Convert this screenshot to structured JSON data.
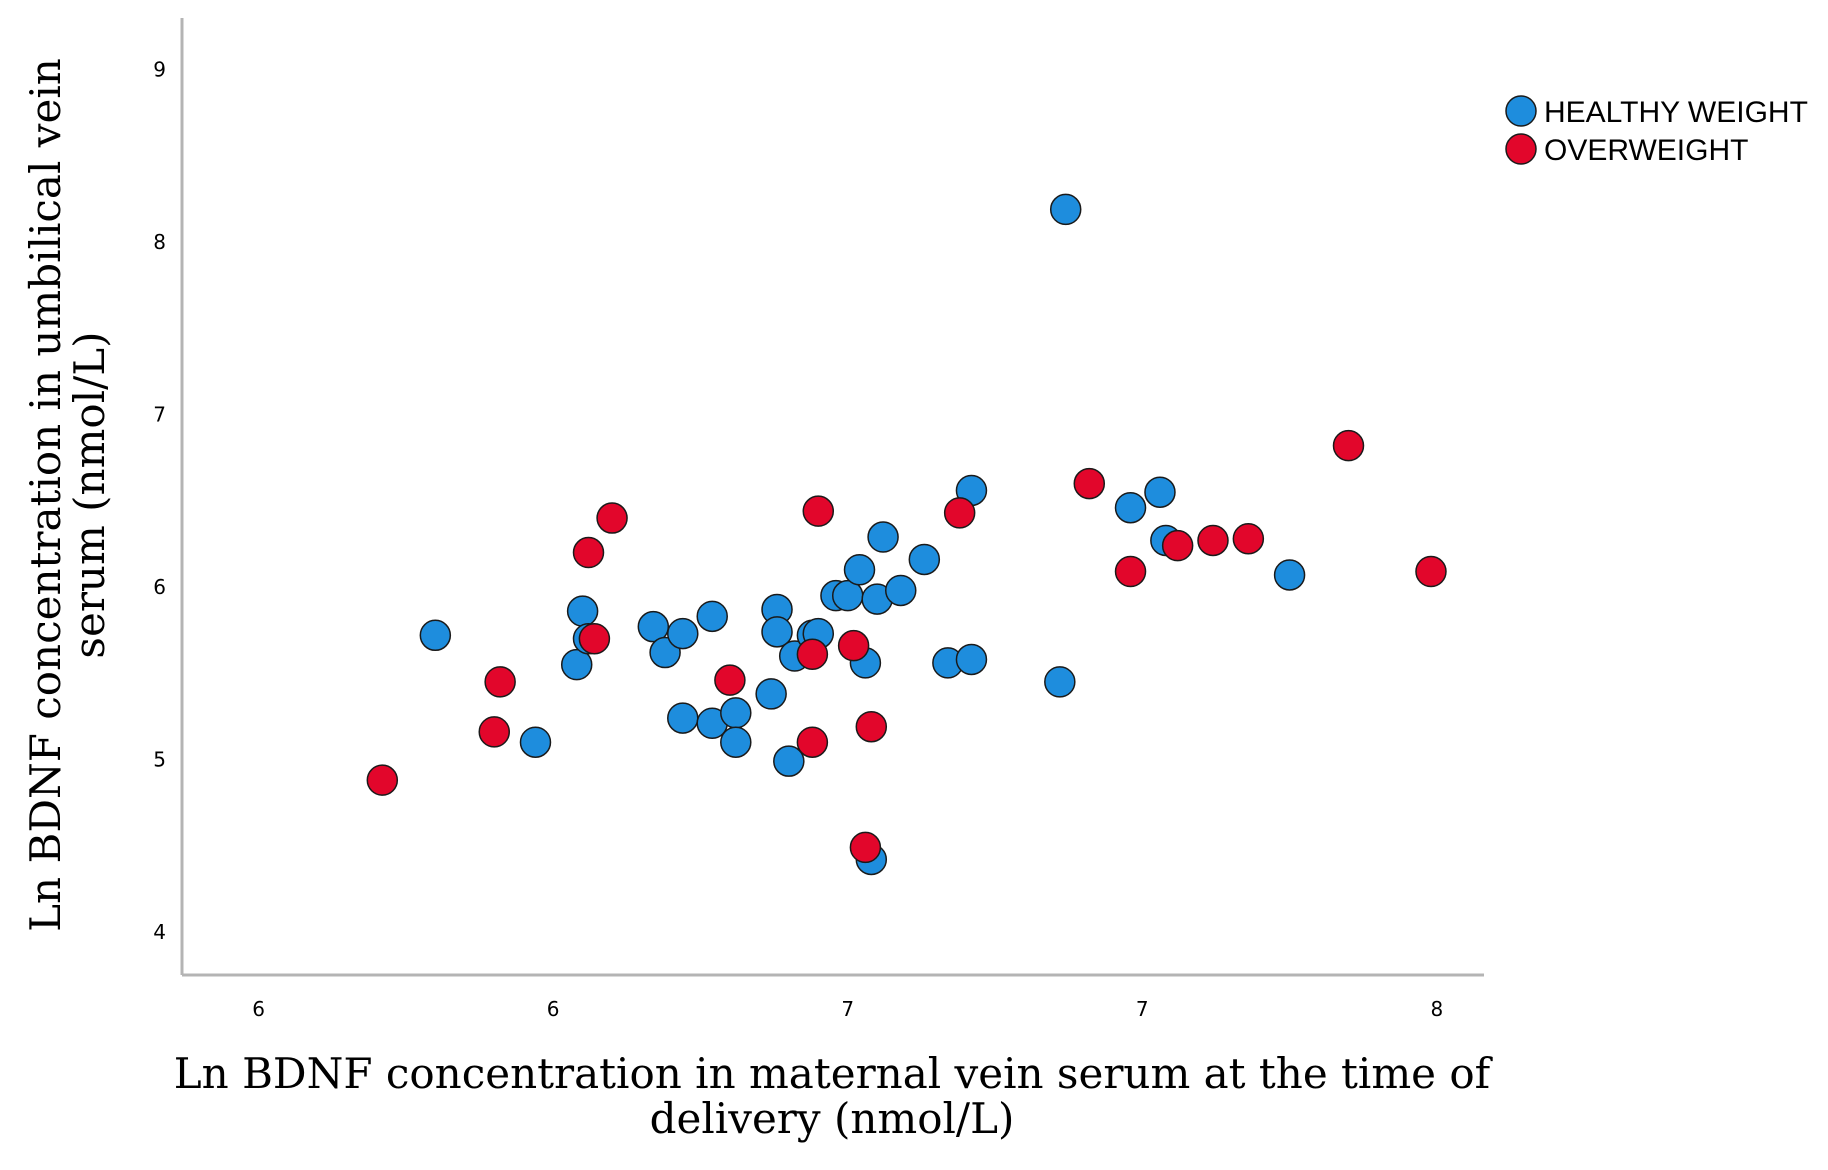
{
  "chart_data": {
    "type": "scatter",
    "title": "",
    "xlabel": "Ln BDNF concentration in maternal vein serum at the time of delivery (nmol/L)",
    "xlabel_lines": [
      "Ln BDNF concentration in maternal vein serum at the time of",
      "delivery (nmol/L)"
    ],
    "ylabel": "Ln BDNF concentration in umbilical vein serum (nmol/L)",
    "ylabel_lines": [
      "Ln BDNF concentration in umbilical vein",
      "serum (nmol/L)"
    ],
    "xlim": [
      5.37,
      7.58
    ],
    "ylim": [
      3.75,
      9.3
    ],
    "x_ticks": [
      {
        "value": 5.5,
        "label": "6"
      },
      {
        "value": 6.0,
        "label": "6"
      },
      {
        "value": 6.5,
        "label": "7"
      },
      {
        "value": 7.0,
        "label": "7"
      },
      {
        "value": 7.5,
        "label": "8"
      }
    ],
    "y_ticks": [
      {
        "value": 4,
        "label": "4"
      },
      {
        "value": 5,
        "label": "5"
      },
      {
        "value": 6,
        "label": "6"
      },
      {
        "value": 7,
        "label": "7"
      },
      {
        "value": 8,
        "label": "8"
      },
      {
        "value": 9,
        "label": "9"
      }
    ],
    "grid": false,
    "legend_position": "top-right",
    "series": [
      {
        "name": "HEALTHY WEIGHT",
        "color": "#1e8ddd",
        "points": [
          [
            6.87,
            8.19
          ],
          [
            5.8,
            5.72
          ],
          [
            5.97,
            5.1
          ],
          [
            6.04,
            5.55
          ],
          [
            6.05,
            5.86
          ],
          [
            6.06,
            5.7
          ],
          [
            6.17,
            5.77
          ],
          [
            6.19,
            5.62
          ],
          [
            6.22,
            5.73
          ],
          [
            6.22,
            5.24
          ],
          [
            6.27,
            5.83
          ],
          [
            6.27,
            5.21
          ],
          [
            6.31,
            5.27
          ],
          [
            6.31,
            5.1
          ],
          [
            6.37,
            5.38
          ],
          [
            6.38,
            5.87
          ],
          [
            6.38,
            5.74
          ],
          [
            6.4,
            4.99
          ],
          [
            6.41,
            5.6
          ],
          [
            6.44,
            5.72
          ],
          [
            6.45,
            5.73
          ],
          [
            6.48,
            5.95
          ],
          [
            6.5,
            5.95
          ],
          [
            6.52,
            6.1
          ],
          [
            6.53,
            5.56
          ],
          [
            6.55,
            5.93
          ],
          [
            6.56,
            6.29
          ],
          [
            6.59,
            5.98
          ],
          [
            6.63,
            6.16
          ],
          [
            6.54,
            4.42
          ],
          [
            6.67,
            5.56
          ],
          [
            6.71,
            5.58
          ],
          [
            6.71,
            6.56
          ],
          [
            6.86,
            5.45
          ],
          [
            6.98,
            6.46
          ],
          [
            7.03,
            6.55
          ],
          [
            7.04,
            6.27
          ],
          [
            7.25,
            6.07
          ]
        ]
      },
      {
        "name": "OVERWEIGHT",
        "color": "#e2062b",
        "points": [
          [
            5.71,
            4.88
          ],
          [
            5.9,
            5.16
          ],
          [
            5.91,
            5.45
          ],
          [
            6.06,
            6.2
          ],
          [
            6.07,
            5.7
          ],
          [
            6.1,
            6.4
          ],
          [
            6.3,
            5.46
          ],
          [
            6.44,
            5.1
          ],
          [
            6.44,
            5.61
          ],
          [
            6.45,
            6.44
          ],
          [
            6.51,
            5.66
          ],
          [
            6.53,
            4.49
          ],
          [
            6.54,
            5.19
          ],
          [
            6.69,
            6.43
          ],
          [
            6.91,
            6.6
          ],
          [
            6.98,
            6.09
          ],
          [
            7.06,
            6.24
          ],
          [
            7.12,
            6.27
          ],
          [
            7.18,
            6.28
          ],
          [
            7.35,
            6.82
          ],
          [
            7.49,
            6.09
          ]
        ]
      }
    ]
  }
}
